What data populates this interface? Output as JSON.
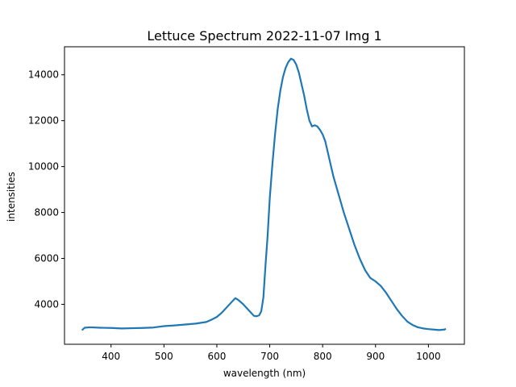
{
  "chart_data": {
    "type": "line",
    "title": "Lettuce Spectrum 2022-11-07 Img 1",
    "xlabel": "wavelength (nm)",
    "ylabel": "intensities",
    "xlim": [
      312,
      1068
    ],
    "ylim": [
      2260,
      15220
    ],
    "xticks": [
      400,
      500,
      600,
      700,
      800,
      900,
      1000
    ],
    "yticks": [
      4000,
      6000,
      8000,
      10000,
      12000,
      14000
    ],
    "grid": false,
    "series": [
      {
        "color": "#1f77b4",
        "x": [
          345,
          350,
          360,
          380,
          400,
          420,
          440,
          460,
          480,
          500,
          520,
          540,
          560,
          580,
          590,
          600,
          610,
          620,
          630,
          635,
          640,
          650,
          660,
          670,
          675,
          680,
          684,
          688,
          692,
          696,
          700,
          705,
          710,
          715,
          720,
          725,
          730,
          735,
          740,
          745,
          750,
          755,
          760,
          765,
          770,
          775,
          780,
          785,
          790,
          795,
          800,
          805,
          810,
          815,
          820,
          830,
          840,
          850,
          860,
          870,
          880,
          890,
          900,
          910,
          920,
          930,
          940,
          950,
          960,
          970,
          980,
          990,
          1000,
          1010,
          1020,
          1030,
          1033
        ],
        "y": [
          2870,
          2980,
          3000,
          2980,
          2970,
          2950,
          2960,
          2970,
          2990,
          3050,
          3080,
          3120,
          3160,
          3230,
          3330,
          3450,
          3650,
          3900,
          4150,
          4270,
          4200,
          4000,
          3750,
          3500,
          3480,
          3520,
          3700,
          4300,
          5700,
          7000,
          8600,
          10100,
          11400,
          12500,
          13300,
          13900,
          14300,
          14550,
          14700,
          14650,
          14450,
          14100,
          13600,
          13100,
          12500,
          12000,
          11750,
          11800,
          11750,
          11600,
          11400,
          11100,
          10600,
          10100,
          9600,
          8800,
          8000,
          7300,
          6600,
          6000,
          5500,
          5150,
          5000,
          4800,
          4500,
          4150,
          3800,
          3500,
          3250,
          3100,
          3000,
          2950,
          2920,
          2900,
          2880,
          2900,
          2930
        ]
      }
    ]
  }
}
